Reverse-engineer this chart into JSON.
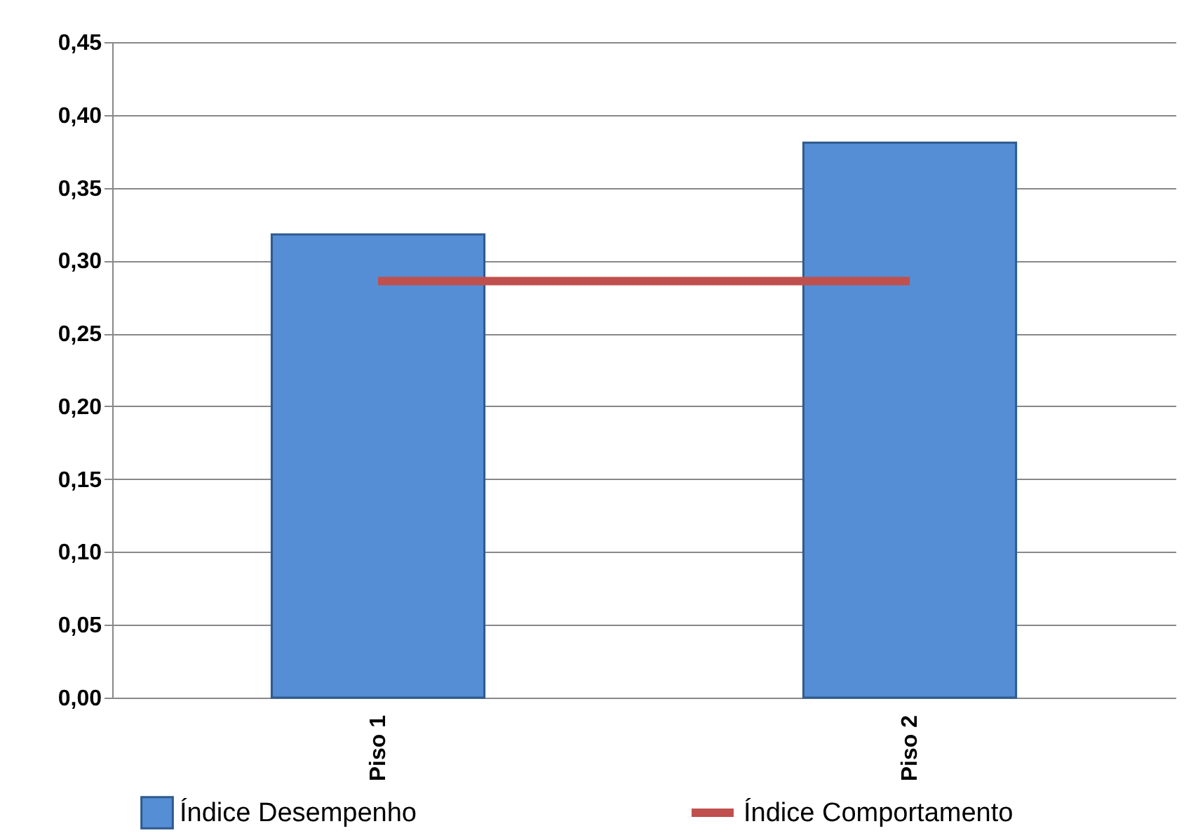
{
  "chart_data": {
    "type": "bar",
    "categories": [
      "Piso 1",
      "Piso 2"
    ],
    "series": [
      {
        "name": "Índice Desempenho",
        "color": "#558ed5",
        "values": [
          0.318,
          0.381
        ]
      },
      {
        "name": "Índice Comportamento",
        "type": "line",
        "color": "#c0504d",
        "values": [
          0.286,
          0.286
        ]
      }
    ],
    "ylim": [
      0,
      0.45
    ],
    "yticks": [
      {
        "value": 0,
        "label": "0,00"
      },
      {
        "value": 0.05,
        "label": "0,05"
      },
      {
        "value": 0.1,
        "label": "0,10"
      },
      {
        "value": 0.15,
        "label": "0,15"
      },
      {
        "value": 0.2,
        "label": "0,20"
      },
      {
        "value": 0.25,
        "label": "0,25"
      },
      {
        "value": 0.3,
        "label": "0,30"
      },
      {
        "value": 0.35,
        "label": "0,35"
      },
      {
        "value": 0.4,
        "label": "0,40"
      },
      {
        "value": 0.45,
        "label": "0,45"
      }
    ],
    "grid": "y",
    "legend": "bottom",
    "line_style": "solid"
  }
}
